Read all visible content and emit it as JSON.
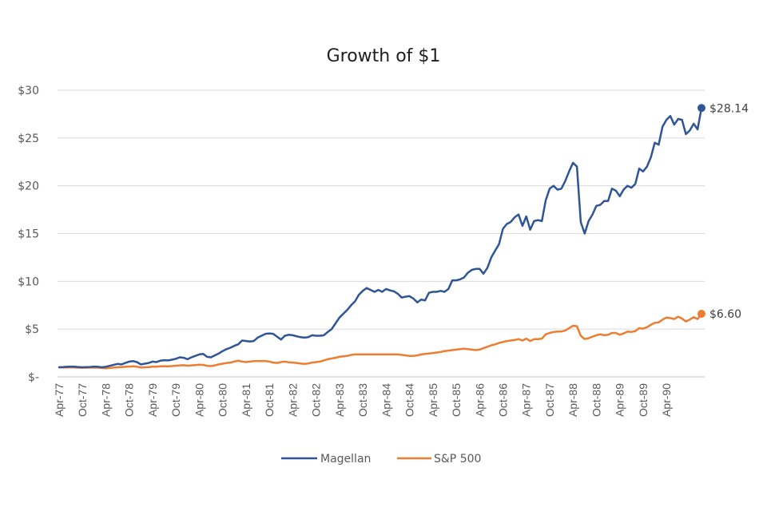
{
  "chart_data": {
    "type": "line",
    "title": "Growth of $1",
    "xlabel": "",
    "ylabel": "",
    "ylim": [
      0,
      30
    ],
    "yticks": [
      {
        "value": 0,
        "label": "$-"
      },
      {
        "value": 5,
        "label": "$5"
      },
      {
        "value": 10,
        "label": "$10"
      },
      {
        "value": 15,
        "label": "$15"
      },
      {
        "value": 20,
        "label": "$20"
      },
      {
        "value": 25,
        "label": "$25"
      },
      {
        "value": 30,
        "label": "$30"
      }
    ],
    "grid": true,
    "legend_position": "bottom",
    "x_start": "Apr-77",
    "x_end": "Apr-90",
    "x_frequency": "monthly",
    "xtick_labels": [
      "Apr-77",
      "Oct-77",
      "Apr-78",
      "Oct-78",
      "Apr-79",
      "Oct-79",
      "Apr-80",
      "Oct-80",
      "Apr-81",
      "Oct-81",
      "Apr-82",
      "Oct-82",
      "Apr-83",
      "Oct-83",
      "Apr-84",
      "Oct-84",
      "Apr-85",
      "Oct-85",
      "Apr-86",
      "Oct-86",
      "Apr-87",
      "Oct-87",
      "Apr-88",
      "Oct-88",
      "Apr-89",
      "Oct-89",
      "Apr-90"
    ],
    "series": [
      {
        "name": "Magellan",
        "color": "#2f5597",
        "end_label": "$28.14",
        "values": [
          1.0,
          1.02,
          1.05,
          1.08,
          1.06,
          1.03,
          1.0,
          1.02,
          1.04,
          1.08,
          1.05,
          1.0,
          1.05,
          1.15,
          1.25,
          1.35,
          1.3,
          1.45,
          1.6,
          1.65,
          1.55,
          1.3,
          1.38,
          1.45,
          1.6,
          1.55,
          1.7,
          1.75,
          1.72,
          1.8,
          1.9,
          2.05,
          2.0,
          1.85,
          2.05,
          2.2,
          2.35,
          2.4,
          2.1,
          2.05,
          2.25,
          2.45,
          2.7,
          2.9,
          3.05,
          3.25,
          3.4,
          3.8,
          3.75,
          3.7,
          3.75,
          4.1,
          4.3,
          4.5,
          4.55,
          4.5,
          4.2,
          3.9,
          4.3,
          4.4,
          4.35,
          4.25,
          4.15,
          4.1,
          4.15,
          4.35,
          4.3,
          4.3,
          4.35,
          4.7,
          5.0,
          5.6,
          6.2,
          6.6,
          7.0,
          7.5,
          7.9,
          8.6,
          9.0,
          9.3,
          9.1,
          8.9,
          9.1,
          8.9,
          9.2,
          9.05,
          8.95,
          8.7,
          8.3,
          8.4,
          8.45,
          8.2,
          7.8,
          8.1,
          8.0,
          8.8,
          8.9,
          8.9,
          9.0,
          8.9,
          9.2,
          10.1,
          10.1,
          10.2,
          10.4,
          10.9,
          11.2,
          11.3,
          11.3,
          10.8,
          11.4,
          12.5,
          13.2,
          13.9,
          15.5,
          16.0,
          16.2,
          16.7,
          17.0,
          15.8,
          16.8,
          15.4,
          16.3,
          16.4,
          16.3,
          18.5,
          19.7,
          20.0,
          19.6,
          19.7,
          20.5,
          21.5,
          22.4,
          22.0,
          16.2,
          15.0,
          16.3,
          17.0,
          17.9,
          18.0,
          18.4,
          18.4,
          19.7,
          19.5,
          18.9,
          19.6,
          20.0,
          19.8,
          20.2,
          21.8,
          21.5,
          22.0,
          23.0,
          24.5,
          24.3,
          26.2,
          26.9,
          27.3,
          26.4,
          27.0,
          26.9,
          25.4,
          25.8,
          26.5,
          25.9,
          28.14
        ]
      },
      {
        "name": "S&P 500",
        "color": "#ed7d31",
        "end_label": "$6.60",
        "values": [
          1.0,
          0.98,
          0.99,
          1.0,
          0.98,
          0.96,
          0.95,
          0.96,
          0.97,
          0.98,
          0.96,
          0.92,
          0.9,
          0.93,
          0.97,
          1.0,
          1.03,
          1.05,
          1.08,
          1.1,
          1.06,
          0.98,
          1.0,
          1.03,
          1.07,
          1.06,
          1.1,
          1.12,
          1.1,
          1.13,
          1.17,
          1.2,
          1.22,
          1.17,
          1.2,
          1.24,
          1.27,
          1.25,
          1.15,
          1.13,
          1.2,
          1.3,
          1.38,
          1.45,
          1.5,
          1.6,
          1.7,
          1.6,
          1.55,
          1.6,
          1.65,
          1.65,
          1.66,
          1.65,
          1.6,
          1.5,
          1.45,
          1.55,
          1.6,
          1.52,
          1.5,
          1.45,
          1.4,
          1.35,
          1.4,
          1.5,
          1.55,
          1.6,
          1.72,
          1.85,
          1.92,
          2.0,
          2.1,
          2.15,
          2.2,
          2.3,
          2.35,
          2.35,
          2.35,
          2.35,
          2.35,
          2.35,
          2.35,
          2.35,
          2.35,
          2.35,
          2.35,
          2.35,
          2.3,
          2.25,
          2.2,
          2.2,
          2.25,
          2.35,
          2.4,
          2.45,
          2.5,
          2.55,
          2.6,
          2.7,
          2.75,
          2.8,
          2.85,
          2.9,
          2.95,
          2.9,
          2.85,
          2.8,
          2.85,
          3.0,
          3.15,
          3.3,
          3.4,
          3.55,
          3.65,
          3.75,
          3.8,
          3.85,
          3.95,
          3.8,
          4.0,
          3.75,
          3.95,
          3.95,
          4.0,
          4.45,
          4.6,
          4.7,
          4.75,
          4.75,
          4.85,
          5.1,
          5.35,
          5.3,
          4.3,
          3.95,
          4.05,
          4.2,
          4.35,
          4.45,
          4.35,
          4.4,
          4.6,
          4.6,
          4.4,
          4.55,
          4.75,
          4.7,
          4.8,
          5.1,
          5.05,
          5.2,
          5.45,
          5.65,
          5.7,
          6.0,
          6.2,
          6.15,
          6.05,
          6.3,
          6.1,
          5.8,
          6.0,
          6.25,
          6.05,
          6.6
        ]
      }
    ]
  }
}
